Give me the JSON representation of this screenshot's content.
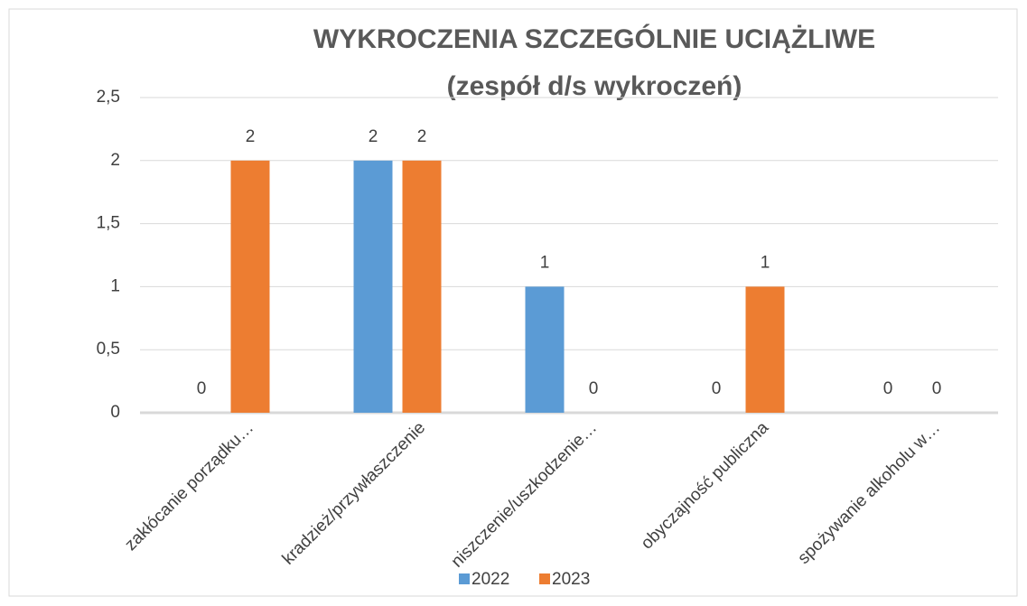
{
  "chart_data": {
    "type": "bar",
    "title": "WYKROCZENIA SZCZEGÓLNIE UCIĄŻLIWE",
    "subtitle": "(zespół d/s wykroczeń)",
    "categories": [
      "zakłócanie porządku…",
      "kradzież/przywłaszczenie",
      "niszczenie/uszkodzenie…",
      "obyczajność publiczna",
      "spożywanie alkoholu w…"
    ],
    "series": [
      {
        "name": "2022",
        "color": "#5b9bd5",
        "values": [
          0,
          2,
          1,
          0,
          0
        ]
      },
      {
        "name": "2023",
        "color": "#ed7d31",
        "values": [
          2,
          2,
          0,
          1,
          0
        ]
      }
    ],
    "ylim": [
      0,
      2.5
    ],
    "yticks": [
      0,
      {
        "value": 0.5,
        "label": "0,5"
      },
      1,
      {
        "value": 1.5,
        "label": "1,5"
      },
      2,
      {
        "value": 2.5,
        "label": "2,5"
      }
    ],
    "grid": true,
    "legend": "bottom"
  }
}
